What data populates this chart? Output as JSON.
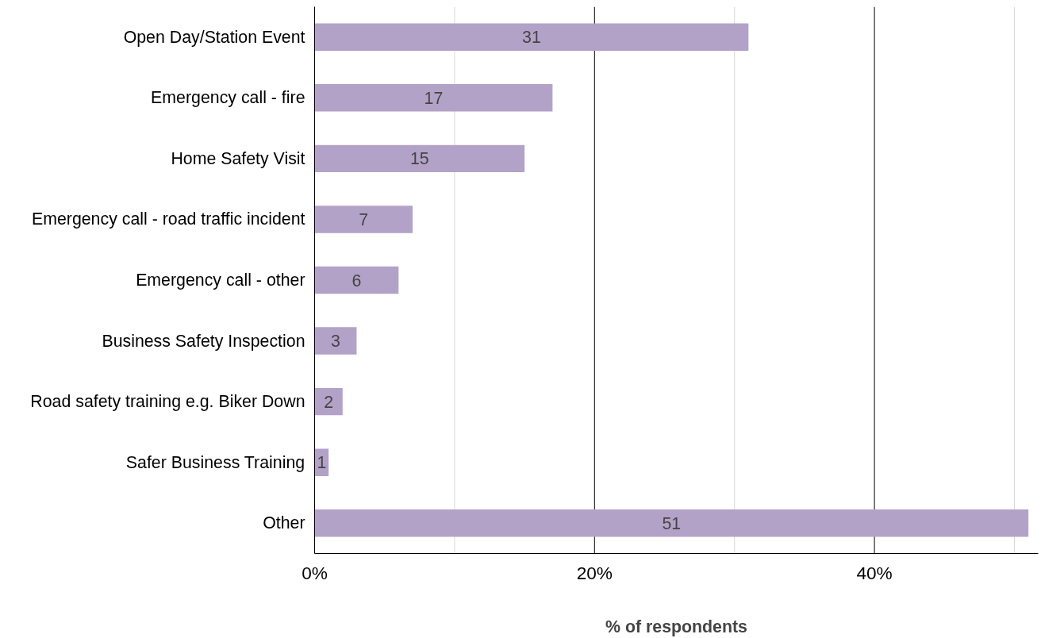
{
  "chart_data": {
    "type": "bar",
    "orientation": "horizontal",
    "xlabel": "% of respondents",
    "categories": [
      "Open Day/Station Event",
      "Emergency call - fire",
      "Home Safety Visit",
      "Emergency call - road traffic incident",
      "Emergency call - other",
      "Business Safety Inspection",
      "Road safety training e.g. Biker Down",
      "Safer Business Training",
      "Other"
    ],
    "values": [
      31,
      17,
      15,
      7,
      6,
      3,
      2,
      1,
      51
    ],
    "color": "#b3a2c7",
    "xlim": [
      0,
      51.7
    ],
    "xticks": [
      {
        "value": 0,
        "label": "0%"
      },
      {
        "value": 10,
        "label": null
      },
      {
        "value": 20,
        "label": "20%"
      },
      {
        "value": 30,
        "label": null
      },
      {
        "value": 40,
        "label": "40%"
      },
      {
        "value": 50,
        "label": null
      }
    ],
    "grid": "x",
    "data_labels": true
  }
}
